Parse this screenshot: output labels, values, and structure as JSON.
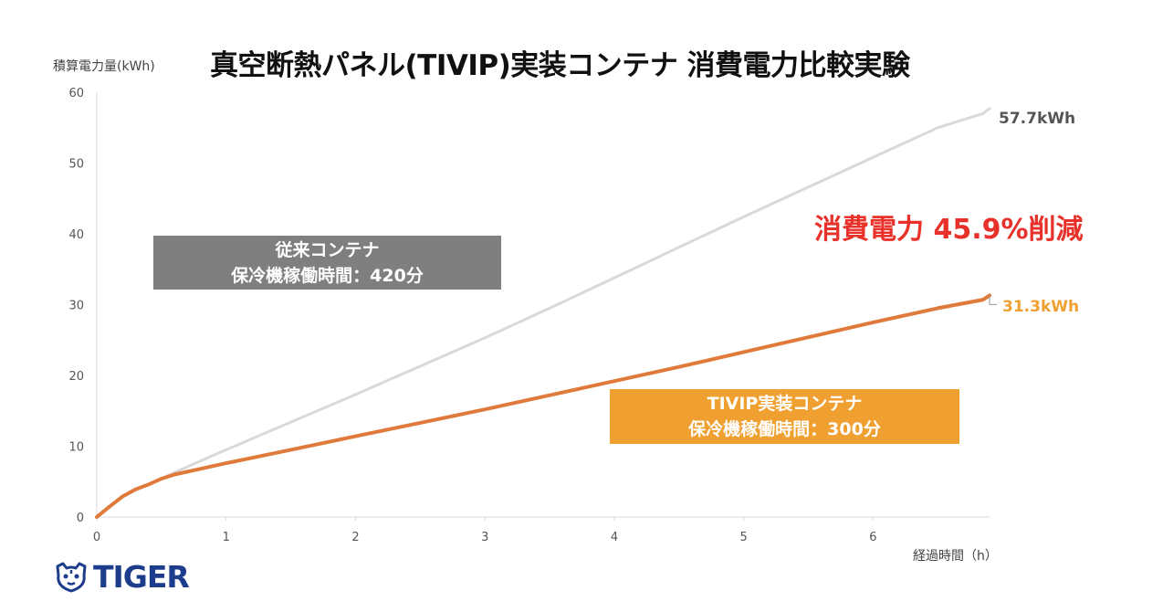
{
  "chart_data": {
    "type": "line",
    "title": "真空断熱パネル(TIVIP)実装コンテナ 消費電力比較実験",
    "ylabel": "積算電力量(kWh)",
    "xlabel": "経過時間（h）",
    "xlim": [
      0,
      6.9
    ],
    "ylim": [
      0,
      60
    ],
    "xticks": [
      0,
      1,
      2,
      3,
      4,
      5,
      6
    ],
    "yticks": [
      0,
      10,
      20,
      30,
      40,
      50,
      60
    ],
    "grid": false,
    "series": [
      {
        "id": "conventional",
        "color": "#d9d9d9",
        "x": [
          0,
          0.1,
          0.2,
          0.3,
          0.4,
          0.5,
          0.6,
          0.8,
          1.0,
          1.5,
          2.0,
          2.5,
          3.0,
          3.5,
          4.0,
          4.5,
          5.0,
          5.5,
          6.0,
          6.5,
          6.85,
          6.9
        ],
        "y": [
          0,
          1.5,
          2.9,
          3.9,
          4.6,
          5.4,
          6.3,
          7.9,
          9.5,
          13.4,
          17.3,
          21.3,
          25.3,
          29.5,
          33.8,
          38.1,
          42.4,
          46.6,
          50.8,
          55.0,
          57.0,
          57.7
        ]
      },
      {
        "id": "tivip",
        "color": "#e07a3a",
        "x": [
          0,
          0.1,
          0.2,
          0.3,
          0.4,
          0.5,
          0.6,
          0.8,
          1.0,
          1.5,
          2.0,
          2.5,
          3.0,
          3.5,
          4.0,
          4.5,
          5.0,
          5.5,
          6.0,
          6.5,
          6.85,
          6.9
        ],
        "y": [
          0,
          1.5,
          2.9,
          3.9,
          4.6,
          5.4,
          6.0,
          6.8,
          7.6,
          9.5,
          11.4,
          13.3,
          15.2,
          17.2,
          19.2,
          21.2,
          23.3,
          25.4,
          27.5,
          29.5,
          30.7,
          31.3
        ]
      }
    ],
    "end_labels": {
      "conventional": "57.7kWh",
      "tivip": "31.3kWh"
    },
    "annotations": {
      "reduction": "消費電力 45.9%削減",
      "conventional_box": [
        "従来コンテナ",
        "保冷機稼働時間：420分"
      ],
      "tivip_box": [
        "TIVIP実装コンテナ",
        "保冷機稼働時間：300分"
      ]
    }
  },
  "colors": {
    "conventional_line": "#d9d9d9",
    "tivip_line": "#e07a3a",
    "conventional_box": "#7f7f7f",
    "tivip_box": "#f0a030",
    "reduction_text": "#e8312a",
    "logo": "#1e3c8c"
  },
  "logo": {
    "text": "TIGER",
    "icon": "tiger-face-icon"
  }
}
